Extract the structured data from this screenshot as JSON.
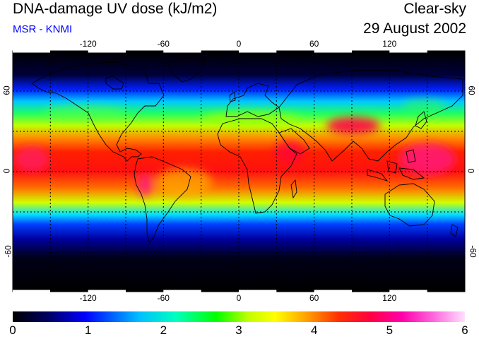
{
  "header": {
    "title": "DNA-damage UV dose (kJ/m2)",
    "subtitle": "MSR - KNMI",
    "sky": "Clear-sky",
    "date": "29 August 2002"
  },
  "map": {
    "lon_ticks": [
      "-120",
      "-60",
      "0",
      "60",
      "120"
    ],
    "lat_ticks": [
      "60",
      "0",
      "-60"
    ]
  },
  "colorbar": {
    "labels": [
      "0",
      "1",
      "2",
      "3",
      "4",
      "5",
      "6"
    ],
    "range": [
      0,
      6
    ],
    "colors": [
      "#000000",
      "#000066",
      "#0000ff",
      "#00bfff",
      "#00ffbf",
      "#00ff00",
      "#bfff00",
      "#ffff00",
      "#ffa000",
      "#ff3000",
      "#ff0040",
      "#ff00aa",
      "#ff66dd",
      "#ffe0ff"
    ]
  }
}
